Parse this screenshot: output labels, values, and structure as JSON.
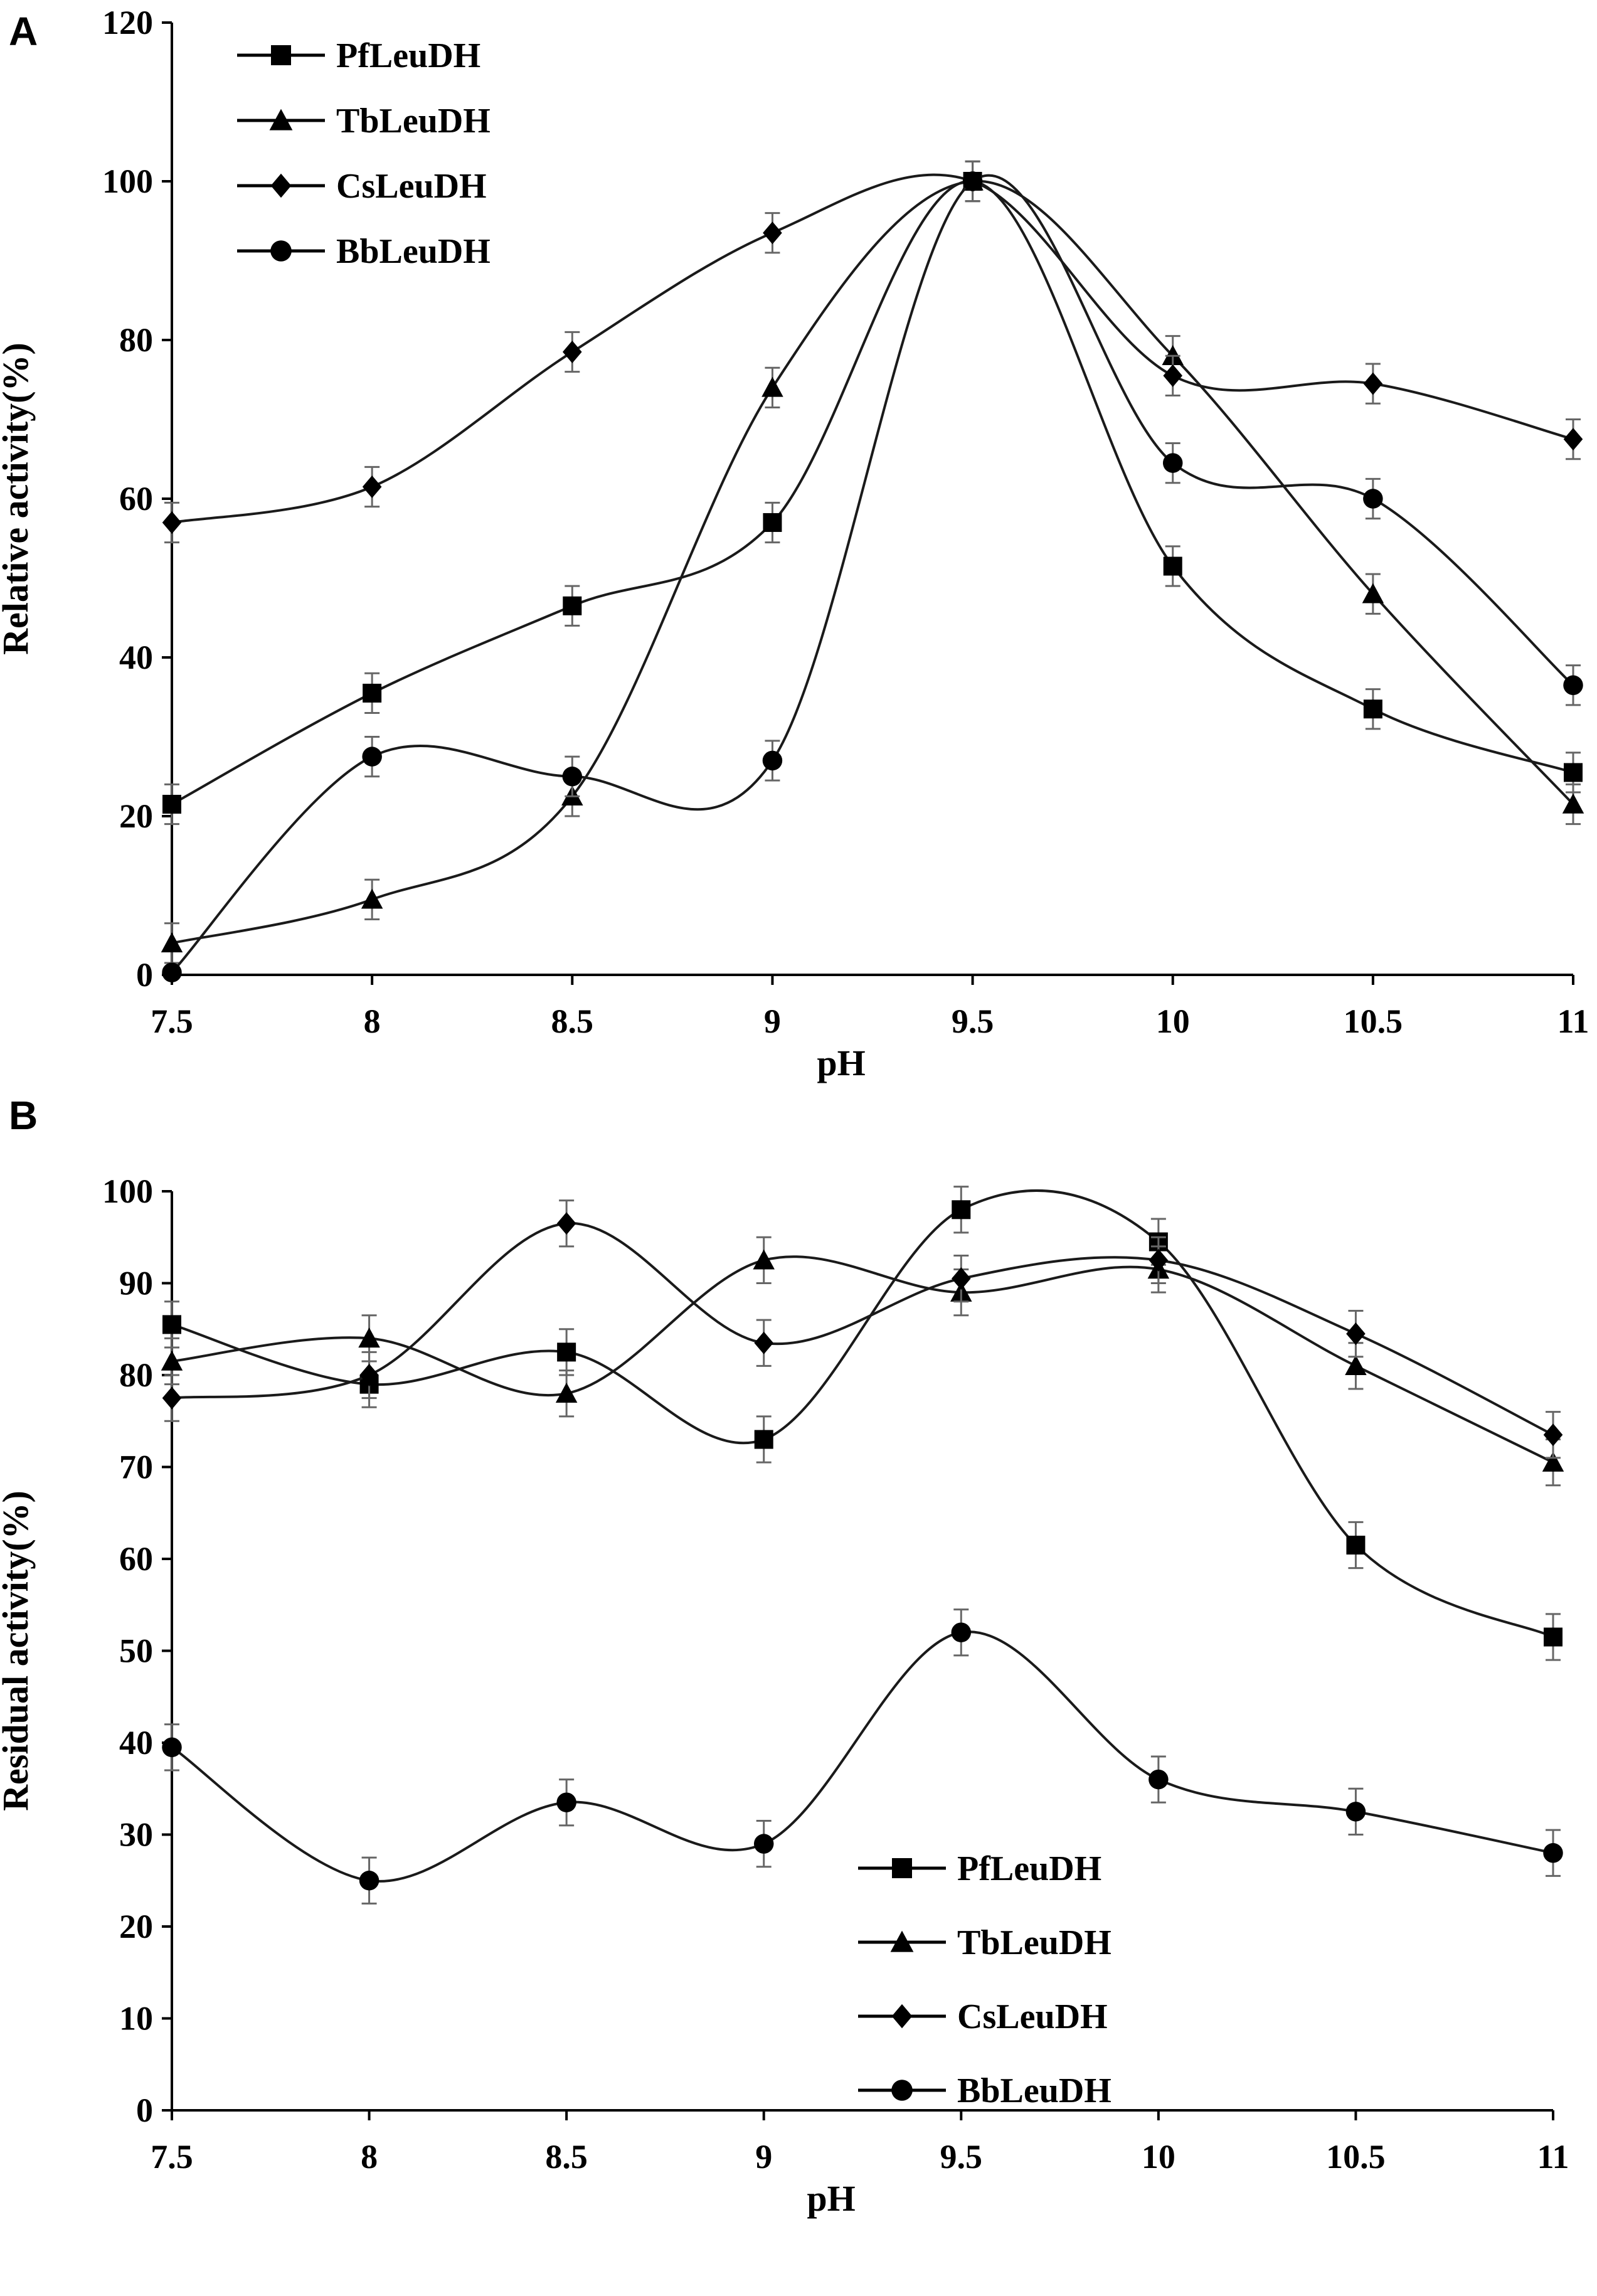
{
  "chart_data": [
    {
      "panel": "A",
      "type": "line",
      "xlabel": "pH",
      "ylabel": "Relative  activity(%)",
      "x": [
        7.5,
        8,
        8.5,
        9,
        9.5,
        10,
        10.5,
        11
      ],
      "x_tick_labels": [
        "7.5",
        "8",
        "8.5",
        "9",
        "9.5",
        "10",
        "10.5",
        "11"
      ],
      "xlim": [
        7.5,
        11
      ],
      "ylim": [
        0,
        120
      ],
      "y_ticks": [
        0,
        20,
        40,
        60,
        80,
        100,
        120
      ],
      "y_tick_labels": [
        "0",
        "20",
        "40",
        "60",
        "80",
        "100",
        "120"
      ],
      "legend_position": "top-left",
      "error_bar": 2.5,
      "series": [
        {
          "name": "PfLeuDH",
          "marker": "square",
          "values": [
            21.5,
            35.5,
            46.5,
            57,
            100,
            51.5,
            33.5,
            25.5
          ]
        },
        {
          "name": "TbLeuDH",
          "marker": "triangle",
          "values": [
            4,
            9.5,
            22.5,
            74,
            100,
            78,
            48,
            21.5
          ]
        },
        {
          "name": "CsLeuDH",
          "marker": "diamond",
          "values": [
            57,
            61.5,
            78.5,
            93.5,
            100,
            75.5,
            74.5,
            67.5
          ]
        },
        {
          "name": "BbLeuDH",
          "marker": "circle",
          "values": [
            0.3,
            27.5,
            25,
            27,
            100,
            64.5,
            60,
            36.5
          ]
        }
      ]
    },
    {
      "panel": "B",
      "type": "line",
      "xlabel": "pH",
      "ylabel": "Residual activity(%)",
      "x": [
        7.5,
        8,
        8.5,
        9,
        9.5,
        10,
        10.5,
        11
      ],
      "x_tick_labels": [
        "7.5",
        "8",
        "8.5",
        "9",
        "9.5",
        "10",
        "10.5",
        "11"
      ],
      "xlim": [
        7.5,
        11
      ],
      "ylim": [
        0,
        100
      ],
      "y_ticks": [
        0,
        10,
        20,
        30,
        40,
        50,
        60,
        70,
        80,
        90,
        100
      ],
      "y_tick_labels": [
        "0",
        "10",
        "20",
        "30",
        "40",
        "50",
        "60",
        "70",
        "80",
        "90",
        "100"
      ],
      "legend_position": "bottom-center-right",
      "error_bar": 2.5,
      "series": [
        {
          "name": "PfLeuDH",
          "marker": "square",
          "values": [
            85.5,
            79,
            82.5,
            73,
            98,
            94.5,
            61.5,
            51.5
          ]
        },
        {
          "name": "TbLeuDH",
          "marker": "triangle",
          "values": [
            81.5,
            84,
            78,
            92.5,
            89,
            91.5,
            81,
            70.5
          ]
        },
        {
          "name": "CsLeuDH",
          "marker": "diamond",
          "values": [
            77.5,
            80,
            96.5,
            83.5,
            90.5,
            92.5,
            84.5,
            73.5
          ]
        },
        {
          "name": "BbLeuDH",
          "marker": "circle",
          "values": [
            39.5,
            25,
            33.5,
            29,
            52,
            36,
            32.5,
            28
          ]
        }
      ]
    }
  ],
  "colors": {
    "ink": "#000000",
    "error": "#666666",
    "line": "#1a1a1a",
    "background": "#ffffff"
  }
}
